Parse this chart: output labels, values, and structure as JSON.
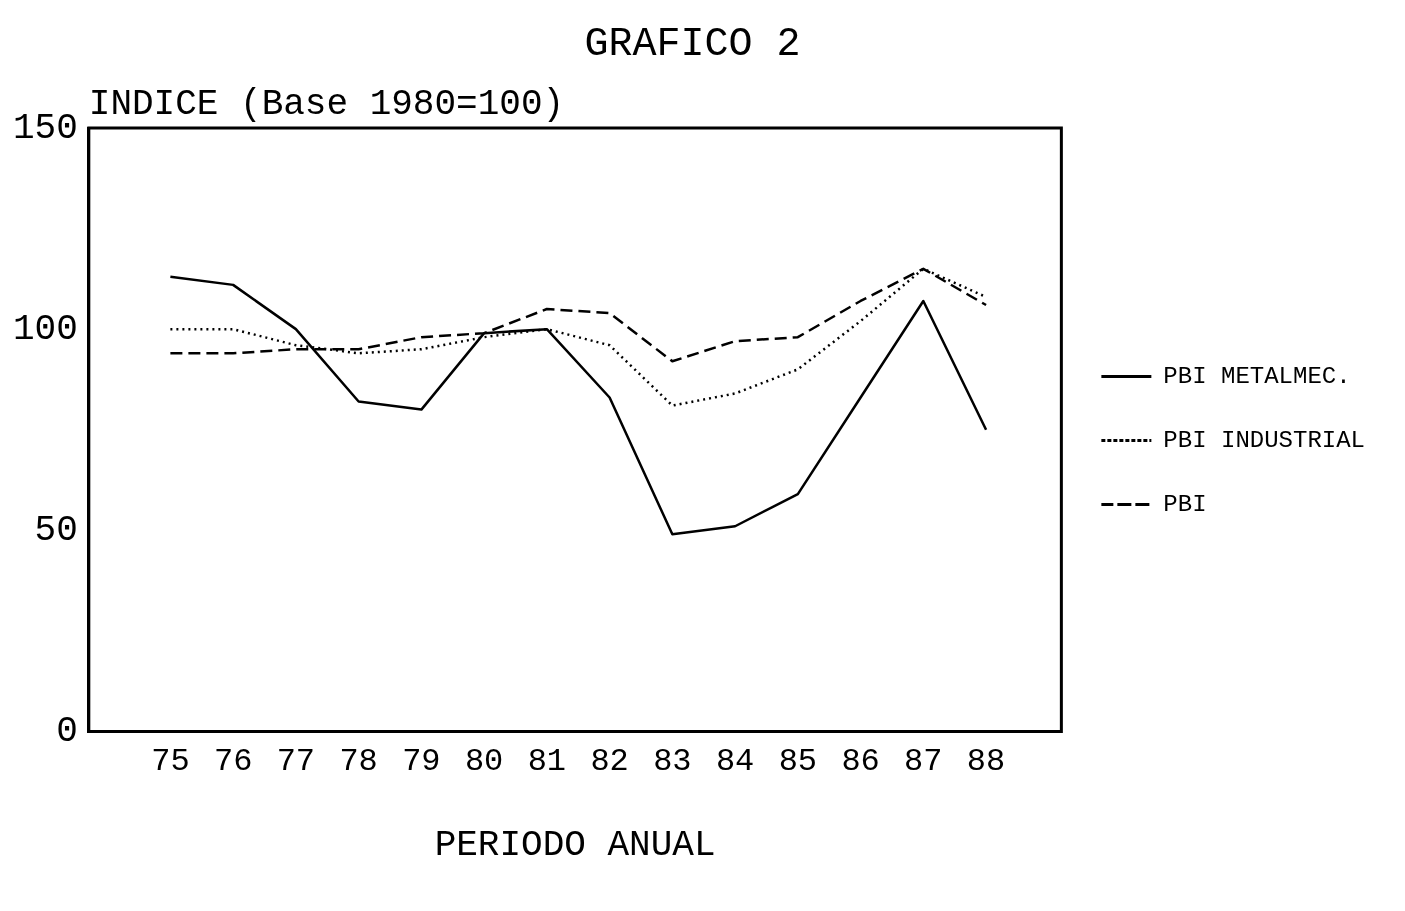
{
  "chart_data": {
    "type": "line",
    "title": "GRAFICO 2",
    "ylabel": "INDICE (Base 1980=100)",
    "xlabel": "PERIODO ANUAL",
    "x": [
      75,
      76,
      77,
      78,
      79,
      80,
      81,
      82,
      83,
      84,
      85,
      86,
      87,
      88
    ],
    "series": [
      {
        "name": "PBI METALMEC.",
        "color": "#000000",
        "line_style": "solid",
        "values": [
          113,
          111,
          100,
          82,
          80,
          99,
          100,
          83,
          49,
          51,
          59,
          83,
          107,
          75
        ]
      },
      {
        "name": "PBI INDUSTRIAL",
        "color": "#000000",
        "line_style": "dotted",
        "values": [
          100,
          100,
          96,
          94,
          95,
          98,
          100,
          96,
          81,
          84,
          90,
          102,
          115,
          108
        ]
      },
      {
        "name": "PBI",
        "color": "#000000",
        "line_style": "dashed",
        "values": [
          94,
          94,
          95,
          95,
          98,
          99,
          105,
          104,
          92,
          97,
          98,
          107,
          115,
          106
        ]
      }
    ],
    "xlim": [
      73.7,
      89.2
    ],
    "xticks": [
      75,
      76,
      77,
      78,
      79,
      80,
      81,
      82,
      83,
      84,
      85,
      86,
      87,
      88
    ],
    "ylim": [
      0,
      150
    ],
    "yticks": [
      0,
      50,
      100,
      150
    ],
    "grid": false,
    "legend": "right",
    "marker": "none"
  }
}
